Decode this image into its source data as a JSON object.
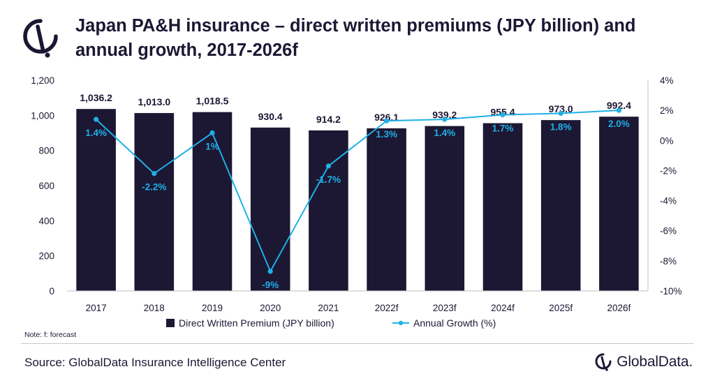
{
  "brand": {
    "name": "GlobalData.",
    "primary": "#1c1733",
    "accent": "#1fb0e6"
  },
  "header": {
    "title": "Japan PA&H insurance – direct written premiums (JPY billion) and annual growth, 2017-2026f"
  },
  "footer": {
    "note": "Note: f: forecast",
    "source": "Source: GlobalData Insurance Intelligence Center"
  },
  "chart_data": {
    "type": "bar",
    "title": "Japan PA&H insurance – direct written premiums (JPY billion) and annual growth, 2017-2026f",
    "categories": [
      "2017",
      "2018",
      "2019",
      "2020",
      "2021",
      "2022f",
      "2023f",
      "2024f",
      "2025f",
      "2026f"
    ],
    "series": [
      {
        "name": "Direct Written Premium (JPY billion)",
        "type": "bar",
        "axis": "left",
        "color": "#1c1733",
        "values": [
          1036.2,
          1013.0,
          1018.5,
          930.4,
          914.2,
          926.1,
          939.2,
          955.4,
          973.0,
          992.4
        ],
        "labels": [
          "1,036.2",
          "1,013.0",
          "1,018.5",
          "930.4",
          "914.2",
          "926.1",
          "939.2",
          "955.4",
          "973.0",
          "992.4"
        ]
      },
      {
        "name": "Annual Growth (%)",
        "type": "line",
        "axis": "right",
        "color": "#1fb0e6",
        "values": [
          1.4,
          -2.2,
          0.5,
          -8.7,
          -1.7,
          1.3,
          1.4,
          1.7,
          1.8,
          2.0
        ],
        "labels": [
          "1.4%",
          "-2.2%",
          "1%",
          "-9%",
          "-1.7%",
          "1.3%",
          "1.4%",
          "1.7%",
          "1.8%",
          "2.0%"
        ]
      }
    ],
    "y_left": {
      "min": 0,
      "max": 1200,
      "ticks": [
        "0",
        "200",
        "400",
        "600",
        "800",
        "1,000",
        "1,200"
      ]
    },
    "y_right": {
      "min": -10,
      "max": 4,
      "ticks": [
        "-10%",
        "-8%",
        "-6%",
        "-4%",
        "-2%",
        "0%",
        "2%",
        "4%"
      ]
    },
    "grid": false,
    "legend": "bottom"
  }
}
